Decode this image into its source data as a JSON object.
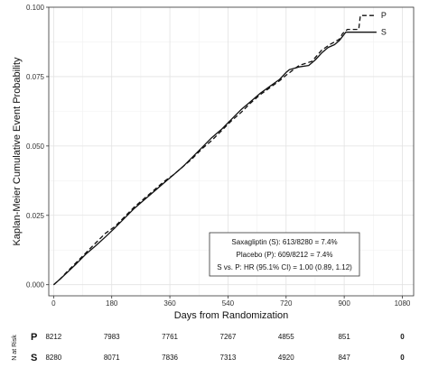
{
  "chart_data": {
    "type": "line",
    "ylabel": "Kaplan-Meier Cumulative Event Probability",
    "xlabel": "Days from Randomization",
    "xlim": [
      -15,
      1115
    ],
    "ylim": [
      -0.004,
      0.1
    ],
    "x_ticks": [
      0,
      180,
      360,
      540,
      720,
      900,
      1080
    ],
    "y_ticks": [
      0.0,
      0.025,
      0.05,
      0.075,
      0.1
    ],
    "y_tick_labels": [
      "0.000",
      "0.025",
      "0.050",
      "0.075",
      "0.100"
    ],
    "grid": true,
    "series": [
      {
        "name": "P",
        "line_style": "dashed",
        "points": [
          [
            0,
            0.0
          ],
          [
            20,
            0.002
          ],
          [
            40,
            0.0045
          ],
          [
            70,
            0.008
          ],
          [
            100,
            0.0115
          ],
          [
            130,
            0.015
          ],
          [
            160,
            0.0185
          ],
          [
            190,
            0.021
          ],
          [
            220,
            0.0245
          ],
          [
            250,
            0.028
          ],
          [
            280,
            0.031
          ],
          [
            310,
            0.034
          ],
          [
            340,
            0.037
          ],
          [
            370,
            0.0395
          ],
          [
            400,
            0.0425
          ],
          [
            430,
            0.0455
          ],
          [
            460,
            0.049
          ],
          [
            490,
            0.052
          ],
          [
            520,
            0.0555
          ],
          [
            550,
            0.059
          ],
          [
            580,
            0.062
          ],
          [
            610,
            0.0655
          ],
          [
            640,
            0.0685
          ],
          [
            670,
            0.071
          ],
          [
            700,
            0.0735
          ],
          [
            720,
            0.0755
          ],
          [
            760,
            0.079
          ],
          [
            800,
            0.0805
          ],
          [
            830,
            0.0845
          ],
          [
            855,
            0.0865
          ],
          [
            870,
            0.0875
          ],
          [
            885,
            0.0885
          ],
          [
            895,
            0.0905
          ],
          [
            910,
            0.092
          ],
          [
            930,
            0.092
          ],
          [
            945,
            0.092
          ],
          [
            950,
            0.097
          ],
          [
            1000,
            0.097
          ]
        ]
      },
      {
        "name": "S",
        "line_style": "solid",
        "points": [
          [
            0,
            0.0
          ],
          [
            20,
            0.002
          ],
          [
            40,
            0.0042
          ],
          [
            70,
            0.0075
          ],
          [
            100,
            0.011
          ],
          [
            130,
            0.014
          ],
          [
            160,
            0.0172
          ],
          [
            190,
            0.0205
          ],
          [
            220,
            0.024
          ],
          [
            250,
            0.0275
          ],
          [
            280,
            0.0305
          ],
          [
            310,
            0.0335
          ],
          [
            340,
            0.0365
          ],
          [
            370,
            0.0395
          ],
          [
            400,
            0.0425
          ],
          [
            430,
            0.046
          ],
          [
            460,
            0.0495
          ],
          [
            490,
            0.053
          ],
          [
            520,
            0.056
          ],
          [
            550,
            0.0595
          ],
          [
            580,
            0.063
          ],
          [
            610,
            0.066
          ],
          [
            640,
            0.069
          ],
          [
            670,
            0.0715
          ],
          [
            700,
            0.074
          ],
          [
            720,
            0.0765
          ],
          [
            730,
            0.0775
          ],
          [
            760,
            0.0785
          ],
          [
            790,
            0.079
          ],
          [
            810,
            0.081
          ],
          [
            830,
            0.0835
          ],
          [
            850,
            0.0855
          ],
          [
            870,
            0.0865
          ],
          [
            885,
            0.088
          ],
          [
            895,
            0.0895
          ],
          [
            905,
            0.091
          ],
          [
            1000,
            0.091
          ]
        ]
      }
    ],
    "legend_box": {
      "lines": [
        "Saxagliptin (S): 613/8280 = 7.4%",
        "Placebo (P): 609/8212 = 7.4%",
        "S vs. P: HR (95.1% CI) = 1.00 (0.89, 1.12)"
      ]
    },
    "risk_table": {
      "label": "N at Risk",
      "rows": [
        {
          "name": "P",
          "values": [
            "8212",
            "7983",
            "7761",
            "7267",
            "4855",
            "851",
            "0"
          ]
        },
        {
          "name": "S",
          "values": [
            "8280",
            "8071",
            "7836",
            "7313",
            "4920",
            "847",
            "0"
          ]
        }
      ]
    }
  }
}
